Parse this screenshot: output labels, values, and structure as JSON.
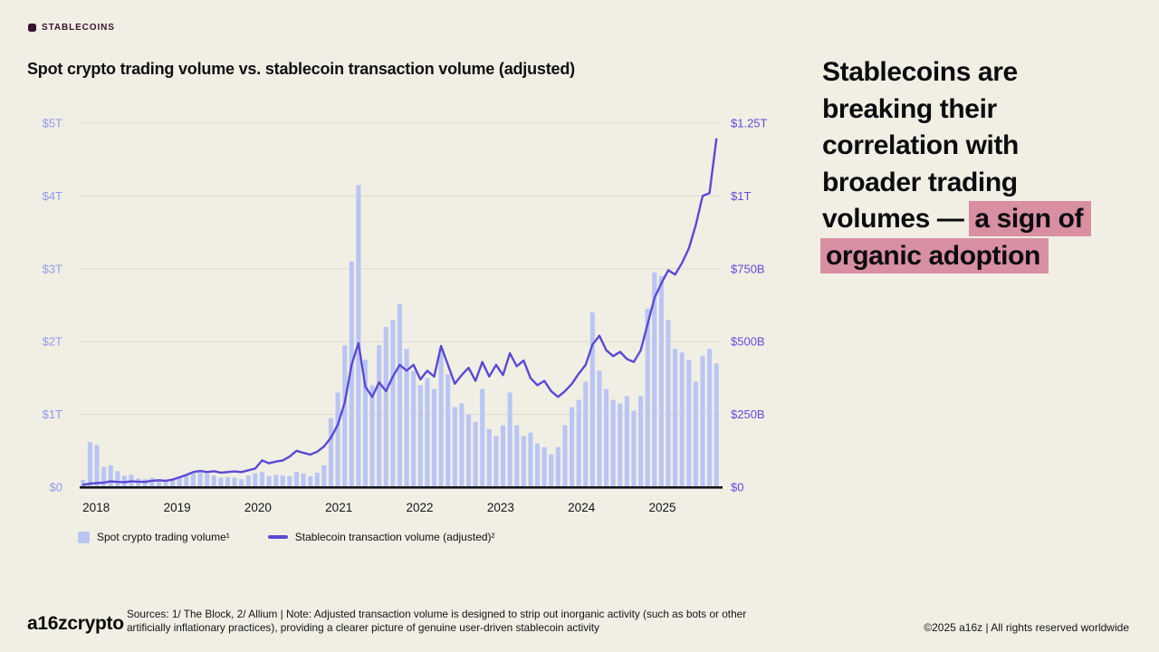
{
  "eyebrow": {
    "label": "STABLECOINS"
  },
  "title": "Spot crypto trading volume vs. stablecoin transaction volume (adjusted)",
  "headline": {
    "pre": "Stablecoins are breaking their correlation with broader trading volumes — ",
    "highlight": "a sign of organic adoption",
    "highlight_color": "#d88fa2"
  },
  "chart": {
    "left_axis": {
      "ticks": [
        "$5T",
        "$4T",
        "$3T",
        "$2T",
        "$1T",
        "$0"
      ]
    },
    "right_axis": {
      "ticks": [
        "$1.25T",
        "$1T",
        "$750B",
        "$500B",
        "$250B",
        "$0"
      ]
    },
    "x_axis": {
      "ticks": [
        "2018",
        "2019",
        "2020",
        "2021",
        "2022",
        "2023",
        "2024",
        "2025"
      ]
    },
    "legend": [
      {
        "label": "Spot crypto trading volume¹"
      },
      {
        "label": "Stablecoin transaction volume (adjusted)²"
      }
    ],
    "colors": {
      "bar": "#b9c5f4",
      "line": "#5a49d6",
      "left_tick": "#909aec",
      "right_tick": "#5f4be0",
      "grid": "#dcdbce",
      "axis": "#14141a",
      "x_tick": "#14141a"
    }
  },
  "chart_data": {
    "type": "combo",
    "x_unit": "month",
    "x_range": [
      "2018-01",
      "2025-09"
    ],
    "x_tick_labels": [
      "2018",
      "2019",
      "2020",
      "2021",
      "2022",
      "2023",
      "2024",
      "2025"
    ],
    "grid": true,
    "legend_position": "bottom",
    "series": [
      {
        "name": "Spot crypto trading volume",
        "type": "bar",
        "axis": "left",
        "unit": "$T",
        "ylim": [
          0,
          5
        ],
        "values": [
          0.1,
          0.62,
          0.58,
          0.28,
          0.3,
          0.22,
          0.16,
          0.17,
          0.12,
          0.11,
          0.13,
          0.1,
          0.09,
          0.1,
          0.13,
          0.15,
          0.19,
          0.21,
          0.19,
          0.16,
          0.13,
          0.14,
          0.13,
          0.11,
          0.16,
          0.19,
          0.21,
          0.15,
          0.17,
          0.16,
          0.15,
          0.21,
          0.19,
          0.15,
          0.2,
          0.3,
          0.95,
          1.3,
          1.95,
          3.1,
          4.15,
          1.75,
          1.4,
          1.95,
          2.2,
          2.3,
          2.52,
          1.9,
          1.6,
          1.4,
          1.5,
          1.35,
          1.9,
          1.55,
          1.1,
          1.15,
          1.0,
          0.9,
          1.35,
          0.8,
          0.7,
          0.85,
          1.3,
          0.85,
          0.7,
          0.75,
          0.6,
          0.55,
          0.45,
          0.55,
          0.85,
          1.1,
          1.2,
          1.45,
          2.4,
          1.6,
          1.35,
          1.2,
          1.15,
          1.25,
          1.05,
          1.25,
          2.45,
          2.95,
          2.9,
          2.3,
          1.9,
          1.85,
          1.75,
          1.45,
          1.8,
          1.9,
          1.7
        ]
      },
      {
        "name": "Stablecoin transaction volume (adjusted)",
        "type": "line",
        "axis": "right",
        "unit": "$B",
        "ylim": [
          0,
          1250
        ],
        "values": [
          8,
          12,
          14,
          16,
          20,
          18,
          17,
          20,
          19,
          18,
          22,
          24,
          22,
          26,
          34,
          42,
          52,
          56,
          52,
          55,
          50,
          52,
          54,
          52,
          58,
          64,
          92,
          82,
          88,
          92,
          105,
          125,
          118,
          112,
          122,
          140,
          170,
          215,
          290,
          420,
          495,
          345,
          310,
          360,
          330,
          380,
          420,
          400,
          420,
          370,
          400,
          380,
          485,
          420,
          355,
          385,
          410,
          365,
          430,
          380,
          420,
          385,
          460,
          415,
          435,
          375,
          350,
          365,
          330,
          310,
          330,
          355,
          390,
          420,
          490,
          520,
          470,
          450,
          465,
          440,
          430,
          470,
          560,
          650,
          700,
          745,
          730,
          770,
          820,
          900,
          1000,
          1010,
          1195
        ]
      }
    ]
  },
  "footer": {
    "logo": "a16zcrypto",
    "sources": "Sources: 1/ The Block, 2/ Allium | Note: Adjusted transaction volume is designed to strip out inorganic activity (such as bots or other artificially inflationary practices), providing a clearer picture of genuine user-driven stablecoin activity",
    "copyright": "©2025 a16z | All rights reserved worldwide"
  }
}
